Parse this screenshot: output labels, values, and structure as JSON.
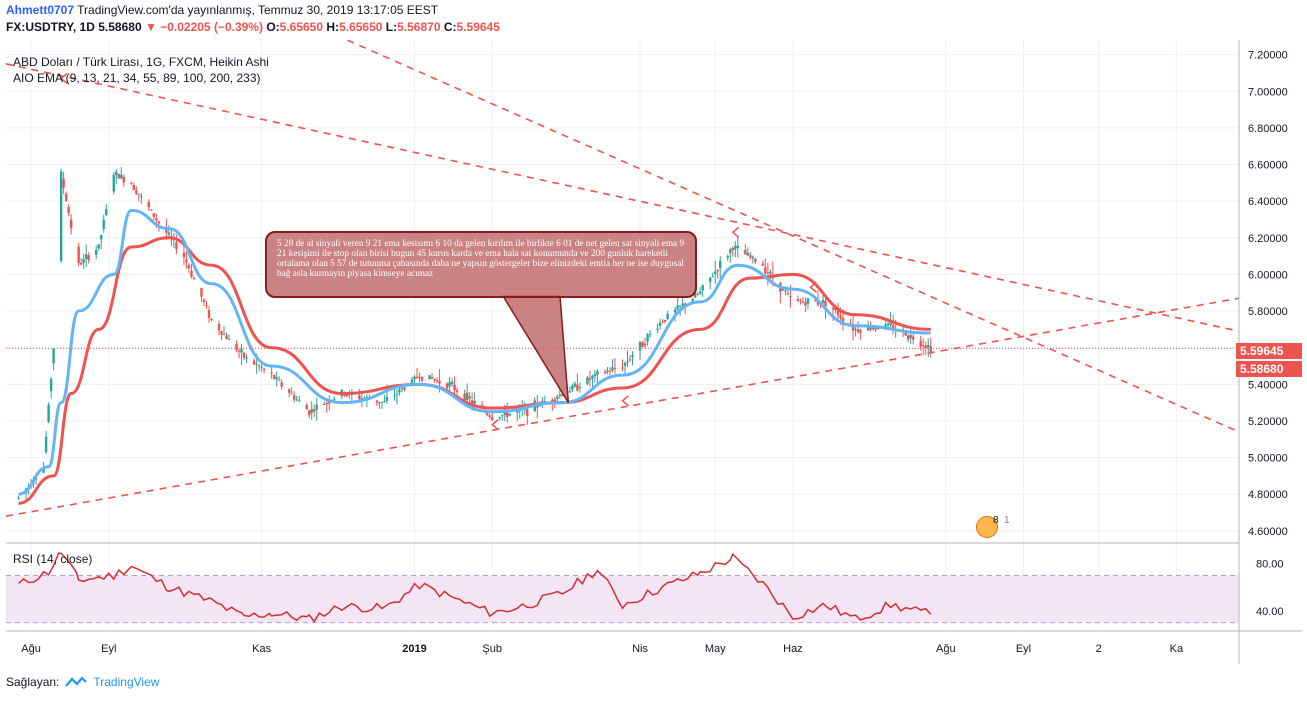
{
  "header": {
    "author": "Ahmett0707",
    "published": "TradingView.com'da yayınlanmış, Temmuz 30, 2019 13:17:05 EEST",
    "symbol": "FX:USDTRY, 1D",
    "last": "5.58680",
    "change": "−0.02205 (−0.39%)",
    "o_label": "O:",
    "o_value": "5.65650",
    "h_label": "H:",
    "h_value": "5.65650",
    "l_label": "L:",
    "l_value": "5.56870",
    "c_label": "C:",
    "c_value": "5.59645"
  },
  "legend": {
    "series_title": "ABD Doları / Türk Lirası, 1G, FXCM, Heikin Ashi",
    "indicator": "AIO EMA (9, 13, 21, 34, 55, 89, 100, 200, 233)",
    "rsi": "RSI (14, close)"
  },
  "annotation": {
    "text": "5 28 de al sinyali veren 9 21 ema kesisımı 6 10 da gelen kırılım ile birlikte  6 01 de net gelen sat sinyali ema 9 21 kesişimi ile stop olan birisi bugun 45 kurus karda ve ema hala sat konumunda ve 200 gunluk hareketli ortalama olan 5 57 de tutunma çabasında  daha ne yapsın göstergeler bize elinizdeki emtia her ne ise duygusal bağ asla kurmayın piyasa kimseye acımaz"
  },
  "badges": {
    "price_current": "5.59645",
    "price_last": "5.58680",
    "events_count": "8",
    "events_extra": "1"
  },
  "footer": {
    "provided_by": "Sağlayan:",
    "brand": "TradingView"
  },
  "colors": {
    "up": "#26a69a",
    "down": "#ef5350",
    "ema_fast": "#64b5f6",
    "ema_slow": "#ef5350",
    "trend": "#ef5350",
    "rsi_line": "#d32f2f",
    "rsi_band": "#f3e5f5"
  },
  "chart_data": [
    {
      "type": "candlestick",
      "style": "Heikin Ashi",
      "ylim": [
        4.55,
        7.28
      ],
      "y_ticks": [
        "7.20000",
        "7.00000",
        "6.80000",
        "6.60000",
        "6.40000",
        "6.20000",
        "6.00000",
        "5.80000",
        "5.60000",
        "5.40000",
        "5.20000",
        "5.00000",
        "4.80000",
        "4.60000"
      ],
      "x_ticks": [
        "Ağu",
        "Eyl",
        "Kas",
        "2019",
        "Şub",
        "Nis",
        "May",
        "Haz",
        "Ağu",
        "Eyl",
        "2",
        "Ka"
      ],
      "approx_close_path": [
        {
          "x": "2018-07-27",
          "y": 4.78
        },
        {
          "x": "2018-08-06",
          "y": 4.95
        },
        {
          "x": "2018-08-10",
          "y": 5.6
        },
        {
          "x": "2018-08-13",
          "y": 6.55
        },
        {
          "x": "2018-08-20",
          "y": 6.05
        },
        {
          "x": "2018-08-28",
          "y": 6.15
        },
        {
          "x": "2018-09-03",
          "y": 6.55
        },
        {
          "x": "2018-09-10",
          "y": 6.5
        },
        {
          "x": "2018-09-20",
          "y": 6.3
        },
        {
          "x": "2018-10-01",
          "y": 6.1
        },
        {
          "x": "2018-10-12",
          "y": 5.75
        },
        {
          "x": "2018-10-25",
          "y": 5.55
        },
        {
          "x": "2018-11-05",
          "y": 5.45
        },
        {
          "x": "2018-11-20",
          "y": 5.25
        },
        {
          "x": "2018-12-03",
          "y": 5.35
        },
        {
          "x": "2018-12-20",
          "y": 5.3
        },
        {
          "x": "2019-01-03",
          "y": 5.45
        },
        {
          "x": "2019-01-15",
          "y": 5.4
        },
        {
          "x": "2019-02-01",
          "y": 5.22
        },
        {
          "x": "2019-02-15",
          "y": 5.26
        },
        {
          "x": "2019-03-01",
          "y": 5.35
        },
        {
          "x": "2019-03-15",
          "y": 5.45
        },
        {
          "x": "2019-03-25",
          "y": 5.5
        },
        {
          "x": "2019-04-10",
          "y": 5.75
        },
        {
          "x": "2019-04-25",
          "y": 5.9
        },
        {
          "x": "2019-05-08",
          "y": 6.15
        },
        {
          "x": "2019-05-20",
          "y": 6.05
        },
        {
          "x": "2019-06-01",
          "y": 5.85
        },
        {
          "x": "2019-06-14",
          "y": 5.85
        },
        {
          "x": "2019-06-26",
          "y": 5.7
        },
        {
          "x": "2019-07-10",
          "y": 5.72
        },
        {
          "x": "2019-07-26",
          "y": 5.6
        }
      ],
      "ema_fast": [
        {
          "x": "2018-07-27",
          "y": 4.8
        },
        {
          "x": "2018-08-08",
          "y": 4.95
        },
        {
          "x": "2018-08-13",
          "y": 5.3
        },
        {
          "x": "2018-08-20",
          "y": 5.8
        },
        {
          "x": "2018-09-03",
          "y": 6.0
        },
        {
          "x": "2018-09-10",
          "y": 6.35
        },
        {
          "x": "2018-09-25",
          "y": 6.25
        },
        {
          "x": "2018-10-12",
          "y": 5.95
        },
        {
          "x": "2018-11-05",
          "y": 5.5
        },
        {
          "x": "2018-12-03",
          "y": 5.3
        },
        {
          "x": "2019-01-03",
          "y": 5.4
        },
        {
          "x": "2019-02-01",
          "y": 5.25
        },
        {
          "x": "2019-03-01",
          "y": 5.3
        },
        {
          "x": "2019-03-25",
          "y": 5.45
        },
        {
          "x": "2019-04-25",
          "y": 5.85
        },
        {
          "x": "2019-05-10",
          "y": 6.05
        },
        {
          "x": "2019-06-01",
          "y": 5.92
        },
        {
          "x": "2019-06-26",
          "y": 5.72
        },
        {
          "x": "2019-07-26",
          "y": 5.68
        }
      ],
      "ema_slow": [
        {
          "x": "2018-07-27",
          "y": 4.75
        },
        {
          "x": "2018-08-10",
          "y": 4.9
        },
        {
          "x": "2018-08-17",
          "y": 5.35
        },
        {
          "x": "2018-08-28",
          "y": 5.7
        },
        {
          "x": "2018-09-10",
          "y": 6.15
        },
        {
          "x": "2018-09-25",
          "y": 6.2
        },
        {
          "x": "2018-10-12",
          "y": 6.05
        },
        {
          "x": "2018-11-05",
          "y": 5.6
        },
        {
          "x": "2018-12-03",
          "y": 5.35
        },
        {
          "x": "2019-01-03",
          "y": 5.4
        },
        {
          "x": "2019-02-01",
          "y": 5.27
        },
        {
          "x": "2019-03-01",
          "y": 5.3
        },
        {
          "x": "2019-03-25",
          "y": 5.38
        },
        {
          "x": "2019-04-25",
          "y": 5.7
        },
        {
          "x": "2019-05-15",
          "y": 5.98
        },
        {
          "x": "2019-06-01",
          "y": 6.0
        },
        {
          "x": "2019-06-26",
          "y": 5.78
        },
        {
          "x": "2019-07-26",
          "y": 5.7
        }
      ]
    },
    {
      "type": "line",
      "ylim": [
        28,
        95
      ],
      "y_ticks": [
        "80.00",
        "40.00"
      ],
      "bands": [
        30,
        70
      ],
      "series": [
        {
          "values": [
            {
              "x": "2018-07-27",
              "y": 62
            },
            {
              "x": "2018-08-08",
              "y": 73
            },
            {
              "x": "2018-08-13",
              "y": 90
            },
            {
              "x": "2018-08-20",
              "y": 66
            },
            {
              "x": "2018-09-03",
              "y": 70
            },
            {
              "x": "2018-09-10",
              "y": 78
            },
            {
              "x": "2018-09-25",
              "y": 60
            },
            {
              "x": "2018-10-12",
              "y": 48
            },
            {
              "x": "2018-10-25",
              "y": 35
            },
            {
              "x": "2018-11-05",
              "y": 38
            },
            {
              "x": "2018-11-20",
              "y": 33
            },
            {
              "x": "2018-12-03",
              "y": 44
            },
            {
              "x": "2018-12-20",
              "y": 42
            },
            {
              "x": "2019-01-03",
              "y": 62
            },
            {
              "x": "2019-01-15",
              "y": 52
            },
            {
              "x": "2019-02-01",
              "y": 38
            },
            {
              "x": "2019-02-15",
              "y": 45
            },
            {
              "x": "2019-03-01",
              "y": 55
            },
            {
              "x": "2019-03-15",
              "y": 75
            },
            {
              "x": "2019-03-25",
              "y": 45
            },
            {
              "x": "2019-04-10",
              "y": 60
            },
            {
              "x": "2019-04-25",
              "y": 72
            },
            {
              "x": "2019-05-08",
              "y": 85
            },
            {
              "x": "2019-05-20",
              "y": 63
            },
            {
              "x": "2019-06-01",
              "y": 35
            },
            {
              "x": "2019-06-14",
              "y": 45
            },
            {
              "x": "2019-06-26",
              "y": 33
            },
            {
              "x": "2019-07-10",
              "y": 45
            },
            {
              "x": "2019-07-26",
              "y": 37
            }
          ]
        }
      ]
    }
  ]
}
